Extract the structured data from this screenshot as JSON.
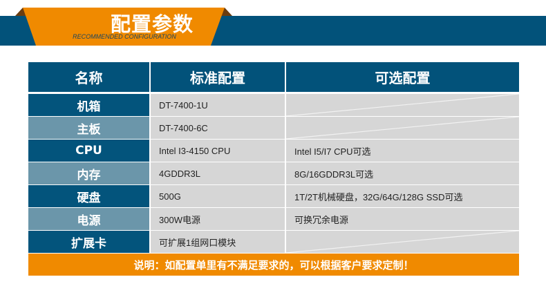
{
  "banner": {
    "title": "配置参数",
    "subtitle": "RECOMMENDED CONFIGURATION"
  },
  "colors": {
    "blue": "#02527a",
    "light_blue": "#6b96aa",
    "orange": "#f08a00",
    "cell": "#d6d6d6"
  },
  "table": {
    "headers": [
      "名称",
      "标准配置",
      "可选配置"
    ],
    "rows": [
      {
        "name": "机箱",
        "standard": "DT-7400-1U",
        "optional": ""
      },
      {
        "name": "主板",
        "standard": "DT-7400-6C",
        "optional": ""
      },
      {
        "name": "CPU",
        "standard": "Intel I3-4150 CPU",
        "optional": "Intel I5/I7 CPU可选"
      },
      {
        "name": "内存",
        "standard": "4GDDR3L",
        "optional": "8G/16GDDR3L可选"
      },
      {
        "name": "硬盘",
        "standard": "500G",
        "optional": "1T/2T机械硬盘，32G/64G/128G SSD可选"
      },
      {
        "name": "电源",
        "standard": "300W电源",
        "optional": "可换冗余电源"
      },
      {
        "name": "扩展卡",
        "standard": "可扩展1组网口模块",
        "optional": ""
      }
    ]
  },
  "footer": {
    "note": "说明：如配置单里有不满足要求的，可以根据客户要求定制！"
  }
}
